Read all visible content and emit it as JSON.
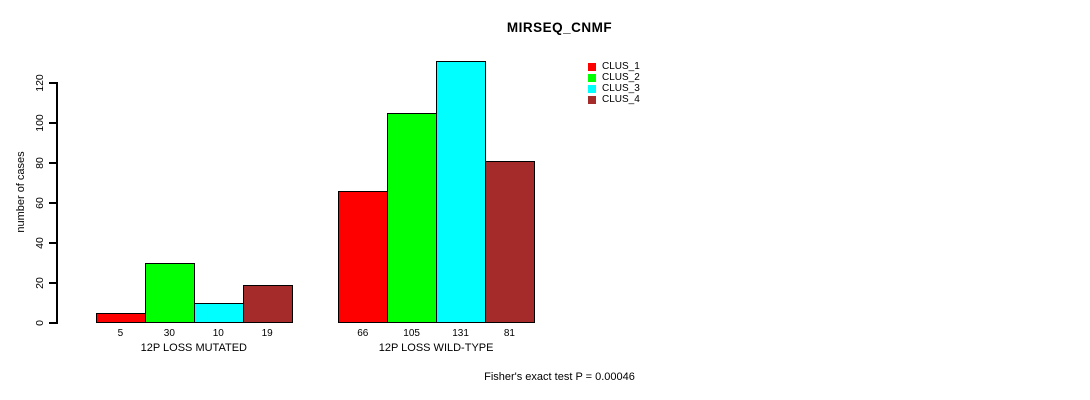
{
  "title": "MIRSEQ_CNMF",
  "ylabel": "number of cases",
  "footer": "Fisher's exact test P = 0.00046",
  "chart_data": {
    "type": "bar",
    "title": "MIRSEQ_CNMF",
    "xlabel": "",
    "ylabel": "number of cases",
    "categories": [
      "12P LOSS MUTATED",
      "12P LOSS WILD-TYPE"
    ],
    "series": [
      {
        "name": "CLUS_1",
        "color": "#FF0000",
        "values": [
          5,
          66
        ]
      },
      {
        "name": "CLUS_2",
        "color": "#00FF00",
        "values": [
          30,
          105
        ]
      },
      {
        "name": "CLUS_3",
        "color": "#00FFFF",
        "values": [
          10,
          131
        ]
      },
      {
        "name": "CLUS_4",
        "color": "#A52A2A",
        "values": [
          19,
          81
        ]
      }
    ],
    "bar_value_labels": [
      [
        5,
        30,
        10,
        19
      ],
      [
        66,
        105,
        131,
        81
      ]
    ],
    "yticks": [
      0,
      20,
      40,
      60,
      80,
      100,
      120
    ],
    "ylim": [
      0,
      120
    ],
    "grid": false,
    "legend_position": "top-right",
    "annotation": "Fisher's exact test P = 0.00046"
  }
}
